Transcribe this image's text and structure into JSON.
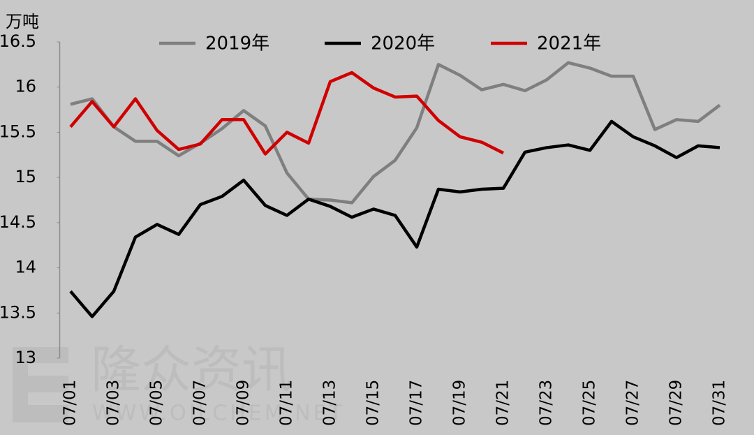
{
  "chart_data": {
    "type": "line",
    "y_unit": "万吨",
    "watermark": "隆众资讯",
    "watermark_url": "WWW.OILCHEM.NET",
    "categories": [
      "07/01",
      null,
      "07/03",
      null,
      "07/05",
      null,
      "07/07",
      null,
      "07/09",
      null,
      "07/11",
      null,
      "07/13",
      null,
      "07/15",
      null,
      "07/17",
      null,
      "07/19",
      null,
      "07/21",
      null,
      "07/23",
      null,
      "07/25",
      null,
      "07/27",
      null,
      "07/29",
      null,
      "07/31"
    ],
    "series": [
      {
        "name": "2019年",
        "color": "#7f7f7f",
        "values": [
          15.81,
          15.87,
          15.56,
          15.4,
          15.4,
          15.24,
          15.38,
          15.54,
          15.74,
          15.57,
          15.05,
          14.76,
          14.75,
          14.72,
          15.01,
          15.19,
          15.55,
          16.25,
          16.13,
          15.97,
          16.03,
          15.96,
          16.08,
          16.27,
          16.21,
          16.12,
          16.12,
          15.53,
          15.64,
          15.62,
          15.8
        ]
      },
      {
        "name": "2020年",
        "color": "#000000",
        "values": [
          13.74,
          13.46,
          13.74,
          14.34,
          14.48,
          14.37,
          14.7,
          14.79,
          14.97,
          14.69,
          14.58,
          14.76,
          14.68,
          14.56,
          14.65,
          14.58,
          14.23,
          14.87,
          14.84,
          14.87,
          14.88,
          15.28,
          15.33,
          15.36,
          15.3,
          15.62,
          15.45,
          15.35,
          15.22,
          15.35,
          15.33
        ]
      },
      {
        "name": "2021年",
        "color": "#d00000",
        "values": [
          15.56,
          15.84,
          15.56,
          15.87,
          15.52,
          15.31,
          15.37,
          15.64,
          15.64,
          15.26,
          15.5,
          15.38,
          16.06,
          16.16,
          15.99,
          15.89,
          15.9,
          15.63,
          15.45,
          15.39,
          15.27,
          null,
          null,
          null,
          null,
          null,
          null,
          null,
          null,
          null,
          null
        ]
      }
    ],
    "ylim": [
      13,
      16.5
    ],
    "yticks": [
      13,
      13.5,
      14,
      14.5,
      15,
      15.5,
      16,
      16.5
    ],
    "grid": false,
    "legend": "top"
  }
}
